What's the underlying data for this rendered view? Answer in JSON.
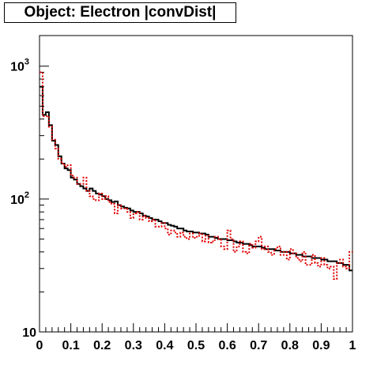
{
  "chart_data": {
    "type": "line",
    "title": "Object: Electron |convDist|",
    "xlabel": "",
    "ylabel": "",
    "x_range": [
      0,
      1
    ],
    "y_range": [
      10,
      1700
    ],
    "y_scale": "log",
    "grid": false,
    "legend": "none",
    "x_ticks": [
      "0",
      "0.1",
      "0.2",
      "0.3",
      "0.4",
      "0.5",
      "0.6",
      "0.7",
      "0.8",
      "0.9",
      "1"
    ],
    "y_ticks": [
      {
        "base": "10",
        "exp": ""
      },
      {
        "base": "10",
        "exp": "2"
      },
      {
        "base": "10",
        "exp": "3"
      }
    ],
    "bin_width": 0.01,
    "series": [
      {
        "style": "solid",
        "color": "#000000",
        "values": [
          700,
          430,
          450,
          360,
          275,
          255,
          210,
          185,
          170,
          165,
          145,
          140,
          130,
          125,
          120,
          115,
          120,
          115,
          110,
          108,
          105,
          100,
          98,
          95,
          96,
          90,
          88,
          86,
          85,
          82,
          80,
          80,
          78,
          75,
          74,
          72,
          70,
          70,
          68,
          66,
          66,
          64,
          63,
          62,
          60,
          60,
          58,
          57,
          57,
          56,
          56,
          55,
          55,
          54,
          52,
          52,
          51,
          50,
          50,
          50,
          49,
          49,
          48,
          47,
          47,
          46,
          46,
          45,
          44,
          44,
          44,
          43,
          42,
          42,
          42,
          41,
          41,
          40,
          40,
          40,
          39,
          39,
          38,
          38,
          37,
          37,
          37,
          36,
          36,
          36,
          35,
          35,
          34,
          34,
          34,
          33,
          33,
          32,
          32,
          29
        ]
      },
      {
        "style": "dotted",
        "color": "#e00000",
        "values": [
          900,
          420,
          420,
          350,
          280,
          240,
          200,
          185,
          175,
          180,
          150,
          145,
          130,
          130,
          145,
          115,
          105,
          100,
          98,
          110,
          100,
          105,
          95,
          92,
          78,
          90,
          85,
          85,
          80,
          72,
          78,
          80,
          70,
          75,
          72,
          68,
          70,
          62,
          62,
          66,
          60,
          54,
          58,
          56,
          52,
          56,
          52,
          50,
          55,
          51,
          52,
          55,
          48,
          53,
          47,
          48,
          52,
          50,
          44,
          42,
          58,
          50,
          40,
          44,
          48,
          40,
          39,
          46,
          43,
          48,
          52,
          42,
          44,
          40,
          38,
          42,
          44,
          38,
          40,
          35,
          42,
          39,
          36,
          34,
          40,
          32,
          32,
          38,
          33,
          31,
          36,
          32,
          30,
          31,
          25,
          33,
          35,
          31,
          30,
          40
        ]
      }
    ]
  }
}
